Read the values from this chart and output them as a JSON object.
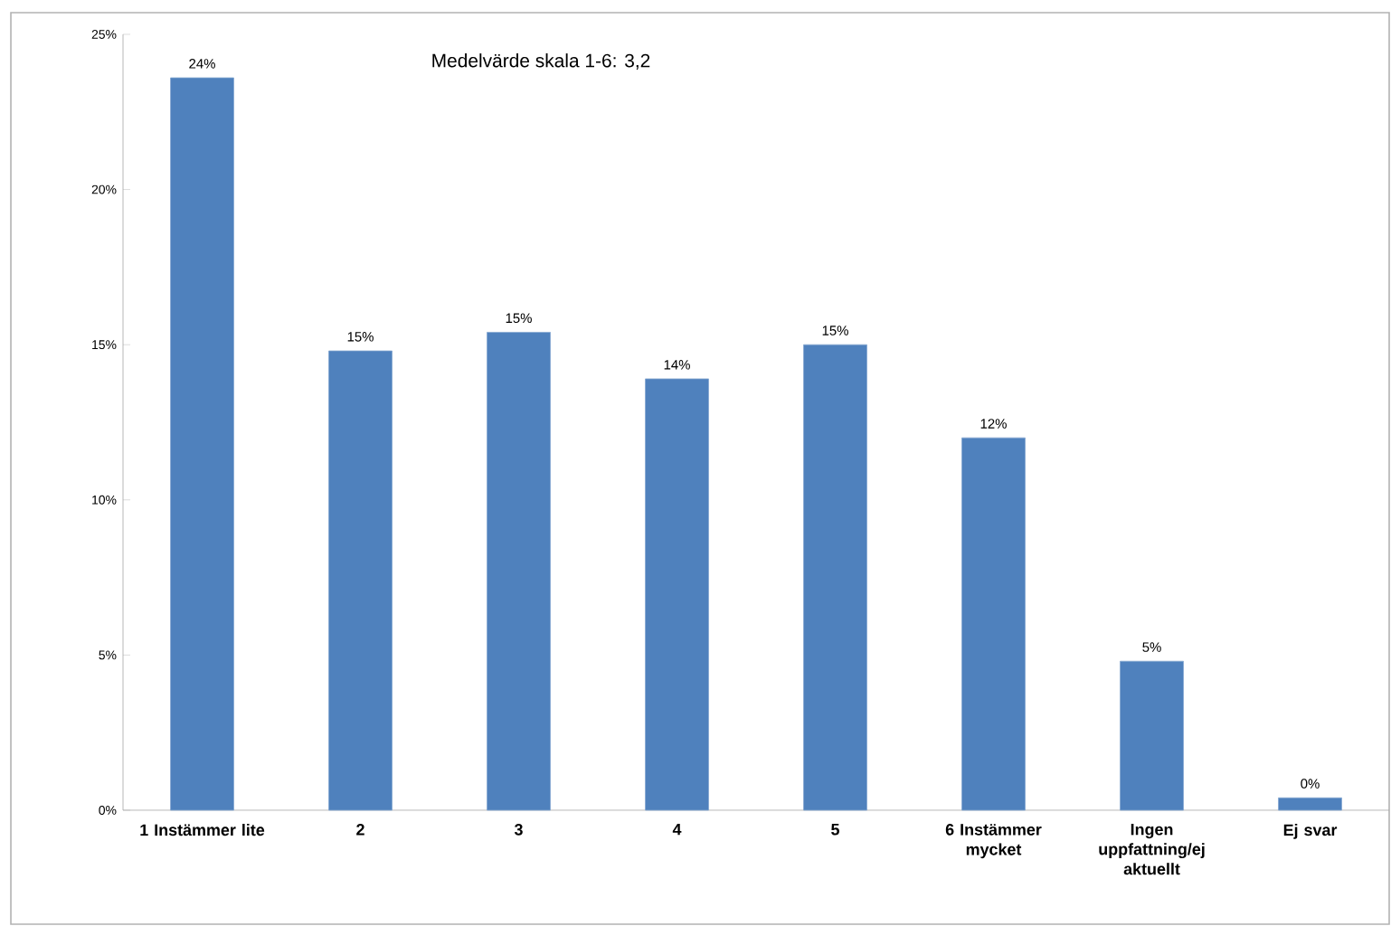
{
  "chart_data": {
    "type": "bar",
    "annotations": [
      "Medelvärde skala 1-6: 3,2"
    ],
    "categories": [
      "1 Instämmer lite",
      "2",
      "3",
      "4",
      "5",
      "6 Instämmer mycket",
      "Ingen uppfattning/ej aktuellt",
      "Ej svar"
    ],
    "values": [
      23.6,
      14.8,
      15.4,
      13.9,
      15.0,
      12.0,
      4.8,
      0.4
    ],
    "value_labels": [
      "24%",
      "15%",
      "15%",
      "14%",
      "15%",
      "12%",
      "5%",
      "0%"
    ],
    "color": "#4f81bd",
    "ylim": [
      0,
      25
    ],
    "yticks": [
      {
        "value": 0,
        "label": "0%"
      },
      {
        "value": 5,
        "label": "5%"
      },
      {
        "value": 10,
        "label": "10%"
      },
      {
        "value": 15,
        "label": "15%"
      },
      {
        "value": 20,
        "label": "20%"
      },
      {
        "value": 25,
        "label": "25%"
      }
    ]
  }
}
